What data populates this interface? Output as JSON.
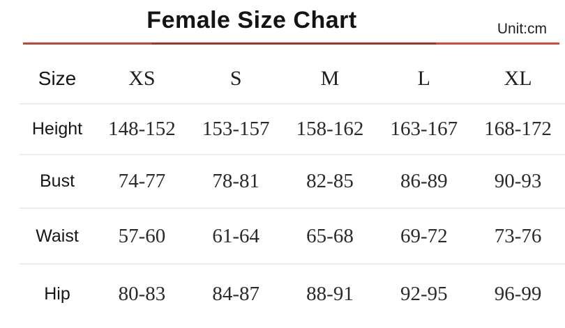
{
  "title": "Female Size Chart",
  "unit_label": "Unit:cm",
  "colors": {
    "accent_line_dark": "#a63325",
    "accent_line_mid": "#bf4537",
    "accent_line_bright": "#d94736",
    "row_separator": "#ededed",
    "text": "#1d1d1d"
  },
  "table": {
    "header": {
      "label": "Size",
      "columns": [
        "XS",
        "S",
        "M",
        "L",
        "XL"
      ]
    },
    "rows": [
      {
        "label": "Height",
        "values": [
          "148-152",
          "153-157",
          "158-162",
          "163-167",
          "168-172"
        ]
      },
      {
        "label": "Bust",
        "values": [
          "74-77",
          "78-81",
          "82-85",
          "86-89",
          "90-93"
        ]
      },
      {
        "label": "Waist",
        "values": [
          "57-60",
          "61-64",
          "65-68",
          "69-72",
          "73-76"
        ]
      },
      {
        "label": "Hip",
        "values": [
          "80-83",
          "84-87",
          "88-91",
          "92-95",
          "96-99"
        ]
      }
    ]
  }
}
